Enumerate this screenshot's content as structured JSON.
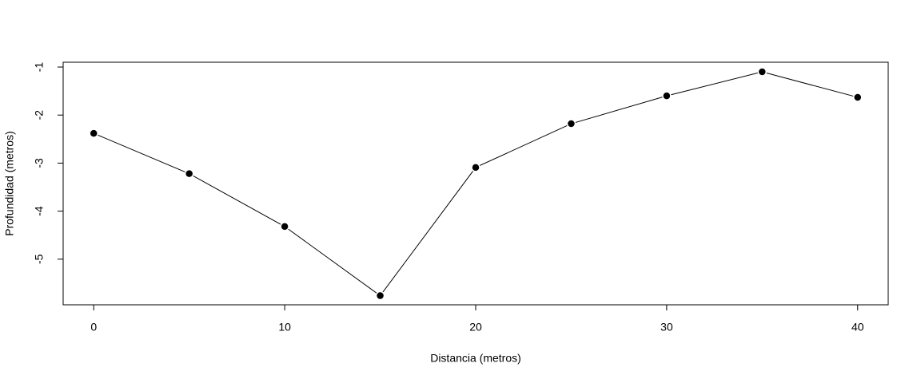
{
  "chart_data": {
    "type": "line",
    "x": [
      0,
      5,
      10,
      15,
      20,
      25,
      30,
      35,
      40
    ],
    "values": [
      -2.38,
      -3.22,
      -4.32,
      -5.76,
      -3.09,
      -2.18,
      -1.6,
      -1.1,
      -1.63
    ],
    "color": "#000000",
    "xlabel": "Distancia (metros)",
    "ylabel": "Profundidad (metros)",
    "xlim": [
      -1.6,
      41.6
    ],
    "ylim": [
      -5.95,
      -0.9
    ],
    "xticks": [
      0,
      10,
      20,
      30,
      40
    ],
    "yticks": [
      -1,
      -2,
      -3,
      -4,
      -5
    ]
  }
}
